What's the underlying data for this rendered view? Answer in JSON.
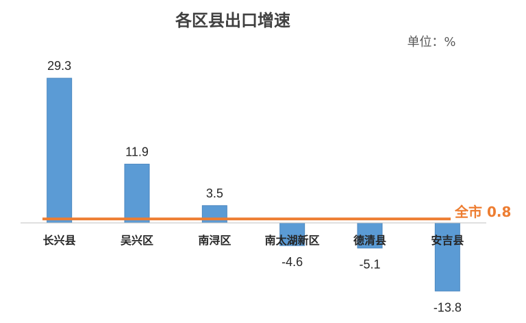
{
  "chart_data": {
    "type": "bar",
    "title": "各区县出口增速",
    "unit_label": "单位：%",
    "categories": [
      "长兴县",
      "吴兴区",
      "南浔区",
      "南太湖新区",
      "德清县",
      "安吉县"
    ],
    "values": [
      29.3,
      11.9,
      3.5,
      -4.6,
      -5.1,
      -13.8
    ],
    "data_labels": [
      "29.3",
      "11.9",
      "3.5",
      "-4.6",
      "-5.1",
      "-13.8"
    ],
    "reference_line": {
      "label": "全市 0.8",
      "value": 0.8
    },
    "ylim": [
      -13.8,
      29.3
    ],
    "grid": false,
    "legend": "none",
    "colors": {
      "bar": "#5b9bd5",
      "bar_stroke": "#4a86bf",
      "reference": "#ed7d31",
      "axis": "#bfbfbf"
    }
  }
}
